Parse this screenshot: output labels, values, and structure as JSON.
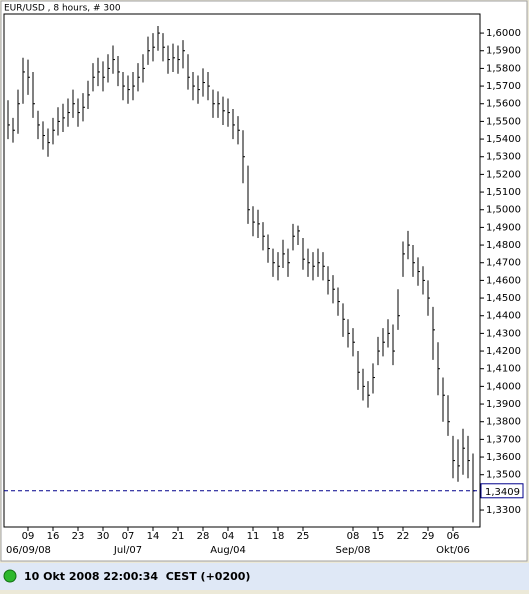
{
  "chart_data": {
    "type": "hlc",
    "title": "EUR/USD , 8 hours, # 300",
    "color": "#000000",
    "categories": [
      null,
      null,
      null,
      null,
      "09",
      null,
      null,
      null,
      null,
      "16",
      null,
      null,
      null,
      null,
      "23",
      null,
      null,
      null,
      null,
      "30",
      null,
      null,
      null,
      null,
      "07",
      null,
      null,
      null,
      null,
      "14",
      null,
      null,
      null,
      null,
      "21",
      null,
      null,
      null,
      null,
      "28",
      null,
      null,
      null,
      null,
      "04",
      null,
      null,
      null,
      null,
      "11",
      null,
      null,
      null,
      null,
      "18",
      null,
      null,
      null,
      null,
      "25",
      null,
      null,
      null,
      null,
      null,
      null,
      null,
      null,
      null,
      "08",
      null,
      null,
      null,
      null,
      "15",
      null,
      null,
      null,
      null,
      "22",
      null,
      null,
      null,
      null,
      "29",
      null,
      null,
      null,
      null,
      "06",
      null,
      null,
      null,
      null
    ],
    "major_labels": [
      null,
      null,
      null,
      null,
      "06/09/08",
      null,
      null,
      null,
      null,
      null,
      null,
      null,
      null,
      null,
      null,
      null,
      null,
      null,
      null,
      null,
      null,
      null,
      null,
      null,
      "Jul/07",
      null,
      null,
      null,
      null,
      null,
      null,
      null,
      null,
      null,
      null,
      null,
      null,
      null,
      null,
      null,
      null,
      null,
      null,
      null,
      "Aug/04",
      null,
      null,
      null,
      null,
      null,
      null,
      null,
      null,
      null,
      null,
      null,
      null,
      null,
      null,
      null,
      null,
      null,
      null,
      null,
      null,
      null,
      null,
      null,
      null,
      "Sep/08",
      null,
      null,
      null,
      null,
      null,
      null,
      null,
      null,
      null,
      null,
      null,
      null,
      null,
      null,
      null,
      null,
      null,
      null,
      null,
      "Okt/06",
      null,
      null,
      null,
      null
    ],
    "high": [
      1.562,
      1.552,
      1.568,
      1.586,
      1.585,
      1.578,
      1.556,
      1.55,
      1.546,
      1.552,
      1.558,
      1.56,
      1.563,
      1.568,
      1.563,
      1.566,
      1.573,
      1.583,
      1.586,
      1.584,
      1.588,
      1.593,
      1.587,
      1.578,
      1.576,
      1.578,
      1.583,
      1.588,
      1.598,
      1.6,
      1.604,
      1.6,
      1.593,
      1.594,
      1.593,
      1.596,
      1.588,
      1.578,
      1.576,
      1.58,
      1.578,
      1.568,
      1.567,
      1.564,
      1.563,
      1.557,
      1.553,
      1.545,
      1.525,
      1.502,
      1.5,
      1.493,
      1.486,
      1.478,
      1.476,
      1.483,
      1.478,
      1.492,
      1.491,
      1.484,
      1.478,
      1.476,
      1.478,
      1.476,
      1.468,
      1.463,
      1.456,
      1.447,
      1.438,
      1.433,
      1.42,
      1.41,
      1.403,
      1.413,
      1.428,
      1.433,
      1.438,
      1.435,
      1.455,
      1.482,
      1.488,
      1.48,
      1.473,
      1.468,
      1.46,
      1.445,
      1.425,
      1.405,
      1.395,
      1.372,
      1.37,
      1.376,
      1.372,
      1.362
    ],
    "low": [
      1.54,
      1.538,
      1.543,
      1.56,
      1.565,
      1.552,
      1.54,
      1.534,
      1.53,
      1.537,
      1.542,
      1.544,
      1.547,
      1.552,
      1.547,
      1.55,
      1.557,
      1.567,
      1.57,
      1.567,
      1.572,
      1.577,
      1.57,
      1.562,
      1.56,
      1.562,
      1.567,
      1.572,
      1.582,
      1.584,
      1.59,
      1.584,
      1.577,
      1.578,
      1.577,
      1.58,
      1.568,
      1.562,
      1.56,
      1.564,
      1.562,
      1.552,
      1.552,
      1.548,
      1.547,
      1.54,
      1.537,
      1.515,
      1.492,
      1.485,
      1.484,
      1.477,
      1.47,
      1.462,
      1.46,
      1.467,
      1.462,
      1.477,
      1.48,
      1.466,
      1.462,
      1.46,
      1.462,
      1.46,
      1.452,
      1.447,
      1.44,
      1.428,
      1.422,
      1.417,
      1.398,
      1.392,
      1.388,
      1.396,
      1.412,
      1.417,
      1.422,
      1.412,
      1.432,
      1.462,
      1.472,
      1.462,
      1.457,
      1.452,
      1.44,
      1.415,
      1.395,
      1.38,
      1.372,
      1.348,
      1.346,
      1.35,
      1.348,
      1.323
    ],
    "close": [
      1.548,
      1.545,
      1.56,
      1.578,
      1.575,
      1.56,
      1.548,
      1.542,
      1.538,
      1.545,
      1.55,
      1.552,
      1.555,
      1.56,
      1.555,
      1.558,
      1.565,
      1.575,
      1.578,
      1.575,
      1.58,
      1.585,
      1.578,
      1.57,
      1.568,
      1.57,
      1.575,
      1.58,
      1.59,
      1.592,
      1.6,
      1.592,
      1.585,
      1.586,
      1.585,
      1.59,
      1.575,
      1.57,
      1.568,
      1.572,
      1.57,
      1.56,
      1.56,
      1.556,
      1.555,
      1.548,
      1.545,
      1.53,
      1.5,
      1.493,
      1.492,
      1.485,
      1.478,
      1.47,
      1.468,
      1.475,
      1.47,
      1.485,
      1.488,
      1.472,
      1.47,
      1.468,
      1.47,
      1.468,
      1.46,
      1.455,
      1.448,
      1.438,
      1.43,
      1.425,
      1.408,
      1.4,
      1.395,
      1.405,
      1.42,
      1.425,
      1.43,
      1.42,
      1.44,
      1.475,
      1.48,
      1.47,
      1.465,
      1.46,
      1.45,
      1.432,
      1.41,
      1.395,
      1.38,
      1.358,
      1.355,
      1.365,
      1.358,
      1.3409
    ],
    "last_price": {
      "value": 1.3409,
      "label": "1,3409",
      "color": "#00008b"
    },
    "ylim": [
      1.3204,
      1.6108
    ],
    "yticks": [
      {
        "value": 1.33,
        "label": "1,3300"
      },
      {
        "value": 1.34,
        "label": "1,3400"
      },
      {
        "value": 1.35,
        "label": "1,3500"
      },
      {
        "value": 1.36,
        "label": "1,3600"
      },
      {
        "value": 1.37,
        "label": "1,3700"
      },
      {
        "value": 1.38,
        "label": "1,3800"
      },
      {
        "value": 1.39,
        "label": "1,3900"
      },
      {
        "value": 1.4,
        "label": "1,4000"
      },
      {
        "value": 1.41,
        "label": "1,4100"
      },
      {
        "value": 1.42,
        "label": "1,4200"
      },
      {
        "value": 1.43,
        "label": "1,4300"
      },
      {
        "value": 1.44,
        "label": "1,4400"
      },
      {
        "value": 1.45,
        "label": "1,4500"
      },
      {
        "value": 1.46,
        "label": "1,4600"
      },
      {
        "value": 1.47,
        "label": "1,4700"
      },
      {
        "value": 1.48,
        "label": "1,4800"
      },
      {
        "value": 1.49,
        "label": "1,4900"
      },
      {
        "value": 1.5,
        "label": "1,5000"
      },
      {
        "value": 1.51,
        "label": "1,5100"
      },
      {
        "value": 1.52,
        "label": "1,5200"
      },
      {
        "value": 1.53,
        "label": "1,5300"
      },
      {
        "value": 1.54,
        "label": "1,5400"
      },
      {
        "value": 1.55,
        "label": "1,5500"
      },
      {
        "value": 1.56,
        "label": "1,5600"
      },
      {
        "value": 1.57,
        "label": "1,5700"
      },
      {
        "value": 1.58,
        "label": "1,5800"
      },
      {
        "value": 1.59,
        "label": "1,5900"
      },
      {
        "value": 1.6,
        "label": "1,6000"
      }
    ],
    "status": "10 Okt 2008 22:00:34  CEST (+0200)"
  }
}
